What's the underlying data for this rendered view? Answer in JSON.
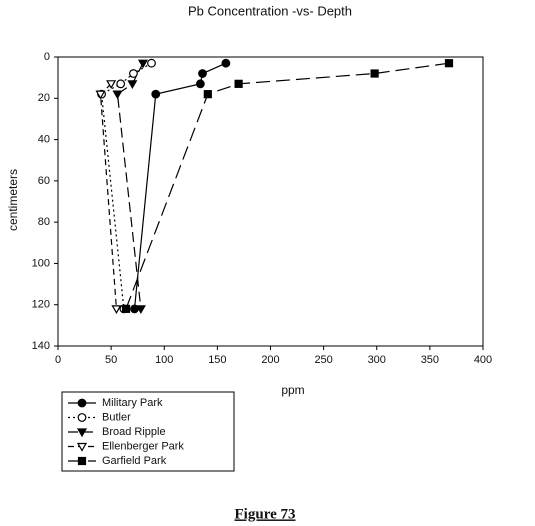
{
  "chart_data": {
    "type": "line",
    "title": "Pb Concentration -vs- Depth",
    "x_label": "ppm",
    "y_label": "centimeters",
    "xlim": [
      0,
      400
    ],
    "xticks": [
      0,
      50,
      100,
      150,
      200,
      250,
      300,
      350,
      400
    ],
    "ylim": [
      0,
      140
    ],
    "yticks": [
      0,
      20,
      40,
      60,
      80,
      100,
      120,
      140
    ],
    "y_inverted": true,
    "legend": "bottom-left",
    "series": [
      {
        "name": "Military Park",
        "color": "#000000",
        "marker": "circle",
        "filled": true,
        "dash": "none",
        "x": [
          158,
          136,
          134,
          92,
          72
        ],
        "values": [
          3,
          8,
          13,
          18,
          122
        ]
      },
      {
        "name": "Butler",
        "color": "#000000",
        "marker": "circle",
        "filled": false,
        "dash": "2 3",
        "x": [
          88,
          71,
          59,
          41,
          62
        ],
        "values": [
          3,
          8,
          13,
          18,
          122
        ]
      },
      {
        "name": "Broad Ripple",
        "color": "#000000",
        "marker": "triangle",
        "filled": true,
        "dash": "10 5",
        "x": [
          80,
          70,
          56,
          78
        ],
        "values": [
          3,
          13,
          18,
          122
        ]
      },
      {
        "name": "Ellenberger Park",
        "color": "#000000",
        "marker": "triangle",
        "filled": false,
        "dash": "6 4",
        "x": [
          50,
          40,
          55
        ],
        "values": [
          13,
          18,
          122
        ]
      },
      {
        "name": "Garfield Park",
        "color": "#000000",
        "marker": "square",
        "filled": true,
        "dash": "14 6",
        "x": [
          368,
          298,
          170,
          141,
          64
        ],
        "values": [
          3,
          8,
          13,
          18,
          122
        ]
      }
    ]
  },
  "caption": "Figure 73"
}
